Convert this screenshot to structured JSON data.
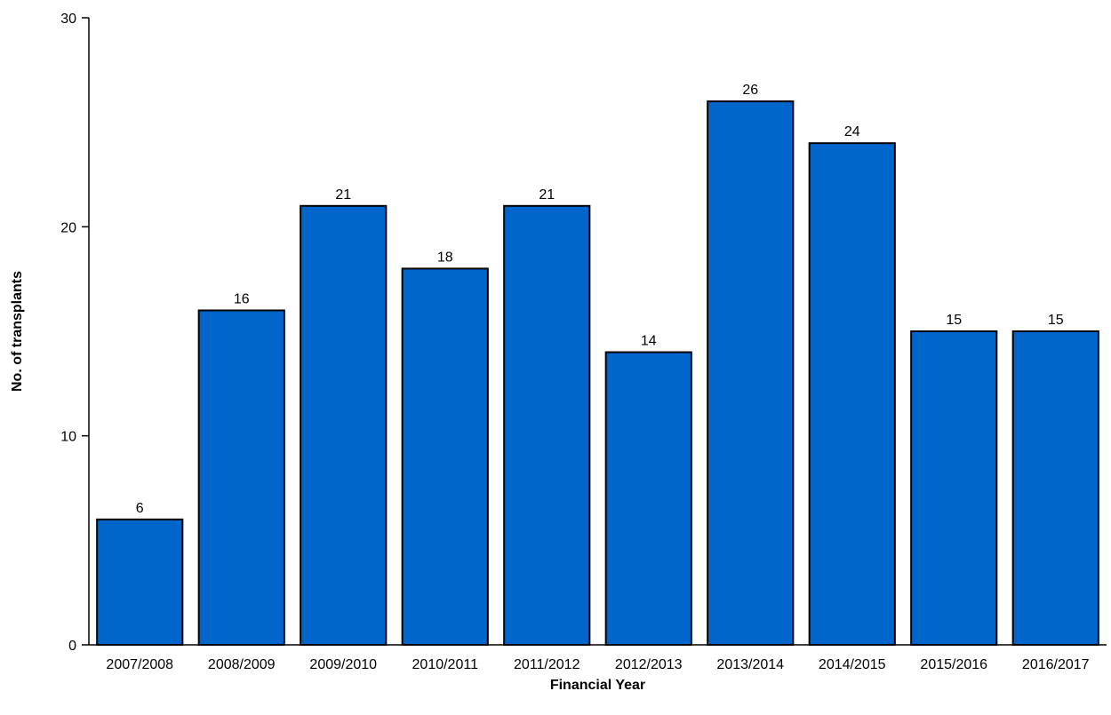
{
  "chart_data": {
    "type": "bar",
    "title": "",
    "xlabel": "Financial Year",
    "ylabel": "No. of transplants",
    "categories": [
      "2007/2008",
      "2008/2009",
      "2009/2010",
      "2010/2011",
      "2011/2012",
      "2012/2013",
      "2013/2014",
      "2014/2015",
      "2015/2016",
      "2016/2017"
    ],
    "values": [
      6,
      16,
      21,
      18,
      21,
      14,
      26,
      24,
      15,
      15
    ],
    "ylim": [
      0,
      30
    ],
    "yticks": [
      0,
      10,
      20,
      30
    ],
    "grid": false,
    "legend": "none",
    "bar_color": "#0066CC",
    "bar_edge_color": "#000000"
  }
}
